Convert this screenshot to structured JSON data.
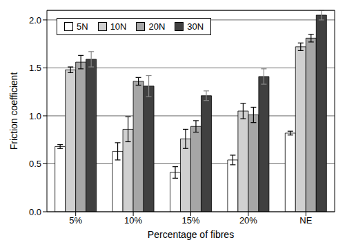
{
  "chart_data": {
    "type": "bar",
    "x_label": "Percentage of fibres",
    "y_label": "Friction coefficient",
    "categories": [
      "5%",
      "10%",
      "15%",
      "20%",
      "NE"
    ],
    "series": [
      {
        "name": "5N",
        "color": "#ffffff",
        "values": [
          0.68,
          0.63,
          0.41,
          0.54,
          0.82
        ],
        "errors": [
          0.02,
          0.09,
          0.06,
          0.05,
          0.02
        ]
      },
      {
        "name": "10N",
        "color": "#d0d0d0",
        "values": [
          1.48,
          0.86,
          0.76,
          1.05,
          1.72
        ],
        "errors": [
          0.03,
          0.13,
          0.1,
          0.08,
          0.04
        ]
      },
      {
        "name": "20N",
        "color": "#a6a6a6",
        "values": [
          1.56,
          1.36,
          0.89,
          1.01,
          1.81
        ],
        "errors": [
          0.07,
          0.04,
          0.06,
          0.08,
          0.04
        ]
      },
      {
        "name": "30N",
        "color": "#404040",
        "values": [
          1.59,
          1.31,
          1.21,
          1.41,
          2.05
        ],
        "errors": [
          0.08,
          0.11,
          0.05,
          0.08,
          0.05
        ]
      }
    ],
    "ylim": [
      0,
      2.1
    ],
    "yticks": [
      {
        "value": 0,
        "label": "0.0"
      },
      {
        "value": 0.5,
        "label": "0.5"
      },
      {
        "value": 1,
        "label": "1.0"
      },
      {
        "value": 1.5,
        "label": "1.5"
      },
      {
        "value": 2,
        "label": "2.0"
      }
    ],
    "grid": true,
    "legend": "upper left"
  }
}
